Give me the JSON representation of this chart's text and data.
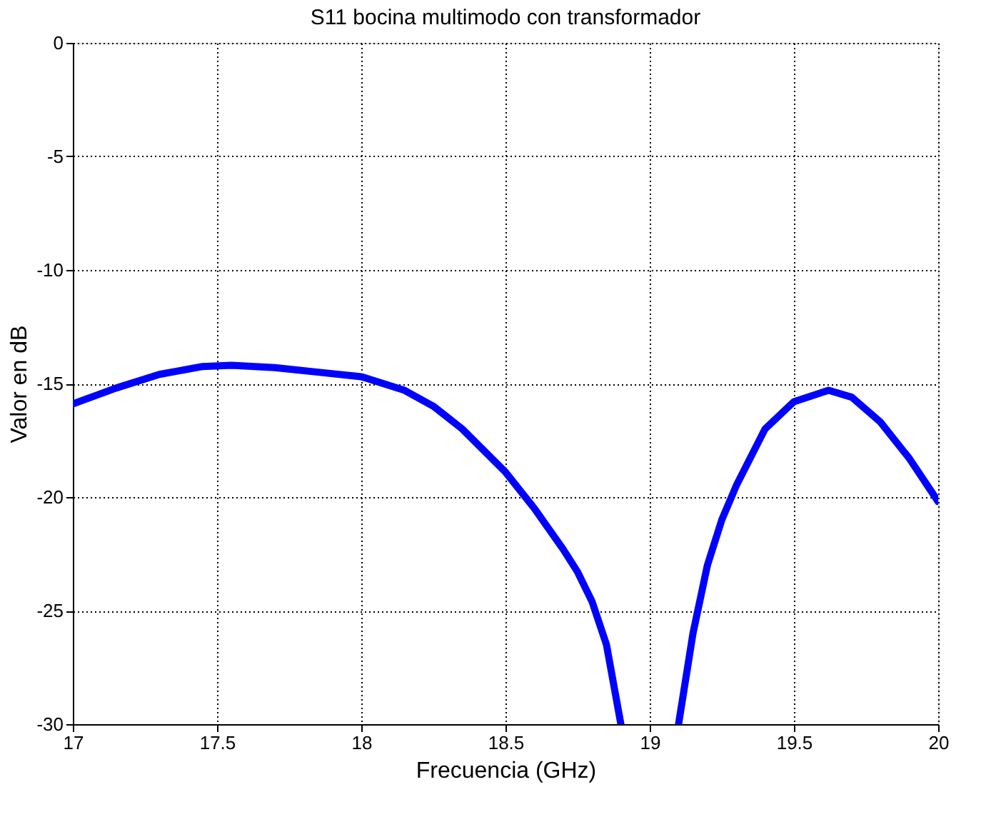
{
  "chart_data": {
    "type": "line",
    "title": "S11 bocina multimodo con transformador",
    "xlabel": "Frecuencia (GHz)",
    "ylabel": "Valor en dB",
    "x": [
      17,
      17.15,
      17.3,
      17.45,
      17.55,
      17.7,
      17.85,
      18,
      18.15,
      18.25,
      18.35,
      18.5,
      18.6,
      18.7,
      18.75,
      18.8,
      18.85,
      18.9,
      19.0,
      19.1,
      19.15,
      19.2,
      19.25,
      19.3,
      19.4,
      19.5,
      19.62,
      19.7,
      19.8,
      19.9,
      20
    ],
    "series": [
      {
        "color": "#0000ff",
        "values": [
          -15.9,
          -15.2,
          -14.6,
          -14.25,
          -14.2,
          -14.3,
          -14.5,
          -14.7,
          -15.3,
          -16.0,
          -17.0,
          -18.9,
          -20.5,
          -22.3,
          -23.3,
          -24.6,
          -26.5,
          -30,
          null,
          -30,
          -26,
          -23.0,
          -21.0,
          -19.5,
          -17.0,
          -15.8,
          -15.3,
          -15.6,
          -16.7,
          -18.3,
          -20.2
        ]
      }
    ],
    "xlim": [
      17,
      20
    ],
    "ylim": [
      -30,
      0
    ],
    "xticks": [
      17,
      17.5,
      18,
      18.5,
      19,
      19.5,
      20
    ],
    "yticks": [
      -30,
      -25,
      -20,
      -15,
      -10,
      -5,
      0
    ],
    "grid": true,
    "line_style": "solid",
    "marker": "none"
  }
}
